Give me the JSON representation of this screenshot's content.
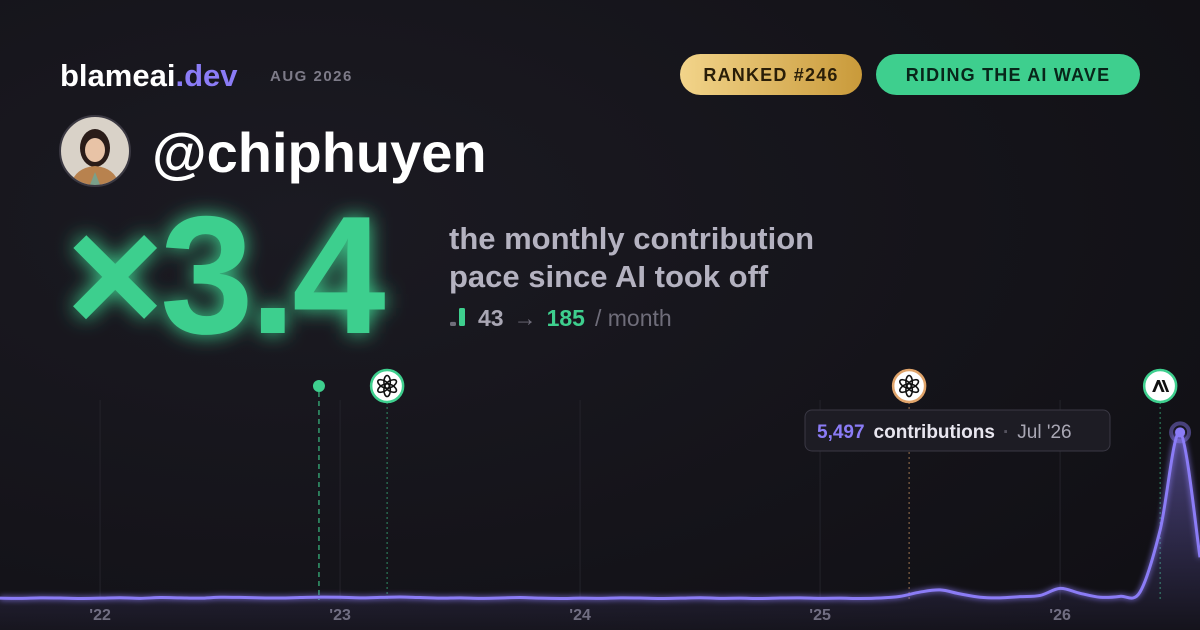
{
  "header": {
    "brand": "blameai",
    "brand_tld": ".dev",
    "date": "AUG 2026",
    "badges": [
      "RANKED #246",
      "RIDING THE AI WAVE"
    ]
  },
  "profile": {
    "handle": "@chiphuyen"
  },
  "headline": {
    "multiplier": "×3.4",
    "caption_lines": [
      "the monthly contribution",
      "pace since AI took off"
    ],
    "before": 43,
    "arrow": "→",
    "after": 185,
    "unit": "/ month"
  },
  "chart_data": {
    "type": "line",
    "x": [
      2021.583,
      2021.667,
      2021.75,
      2021.833,
      2021.917,
      2022,
      2022.083,
      2022.167,
      2022.25,
      2022.333,
      2022.417,
      2022.5,
      2022.583,
      2022.667,
      2022.75,
      2022.833,
      2022.917,
      2023,
      2023.083,
      2023.167,
      2023.25,
      2023.333,
      2023.417,
      2023.5,
      2023.583,
      2023.667,
      2023.75,
      2023.833,
      2023.917,
      2024,
      2024.083,
      2024.167,
      2024.25,
      2024.333,
      2024.417,
      2024.5,
      2024.583,
      2024.667,
      2024.75,
      2024.833,
      2024.917,
      2025,
      2025.083,
      2025.167,
      2025.25,
      2025.333,
      2025.417,
      2025.5,
      2025.583,
      2025.667,
      2025.75,
      2025.833,
      2025.917,
      2026,
      2026.083,
      2026.167,
      2026.25,
      2026.333,
      2026.417,
      2026.5,
      2026.583
    ],
    "series": [
      {
        "name": "contributions",
        "color": "#8b7cf6",
        "values": [
          60,
          55,
          70,
          65,
          50,
          60,
          75,
          55,
          80,
          70,
          60,
          90,
          85,
          70,
          65,
          80,
          95,
          90,
          70,
          85,
          100,
          80,
          60,
          70,
          55,
          65,
          80,
          60,
          50,
          60,
          55,
          70,
          65,
          50,
          60,
          75,
          55,
          60,
          50,
          65,
          70,
          55,
          60,
          50,
          65,
          120,
          260,
          330,
          200,
          90,
          70,
          110,
          150,
          380,
          220,
          90,
          120,
          260,
          2300,
          5497,
          1400
        ]
      }
    ],
    "xlim": [
      2021.583,
      2026.583
    ],
    "ylim": [
      0,
      6000
    ],
    "xticks": [
      {
        "value": 2022,
        "label": "'22"
      },
      {
        "value": 2023,
        "label": "'23"
      },
      {
        "value": 2024,
        "label": "'24"
      },
      {
        "value": 2025,
        "label": "'25"
      },
      {
        "value": 2026,
        "label": "'26"
      }
    ],
    "grid": true,
    "events": [
      {
        "x": 2022.912,
        "icon": "dot",
        "color": "#3ecf8e"
      },
      {
        "x": 2023.196,
        "icon": "openai",
        "color": "#3ecf8e"
      },
      {
        "x": 2025.371,
        "icon": "openai",
        "color": "#e0a46a"
      },
      {
        "x": 2026.417,
        "icon": "anthropic",
        "color": "#3ecf8e"
      }
    ],
    "tooltip": {
      "x": 2026.5,
      "value": 5497,
      "label": "5,497",
      "text": "contributions",
      "date": "Jul '26"
    }
  }
}
